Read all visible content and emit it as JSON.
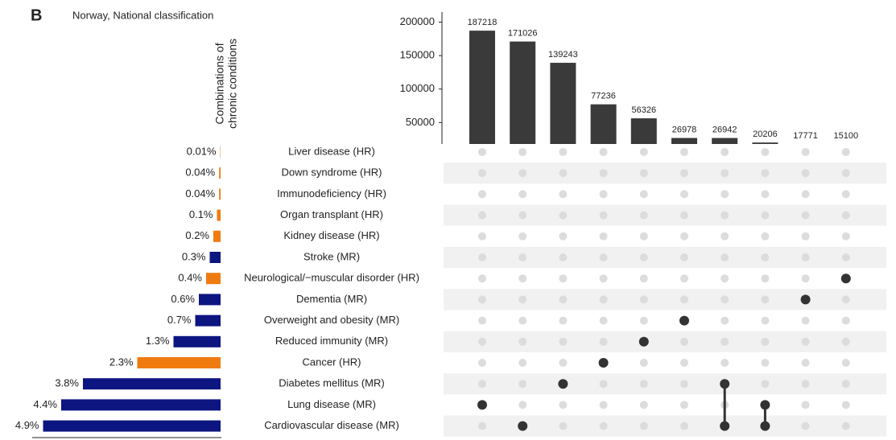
{
  "chart_data": {
    "type": "upset",
    "panel_label": "B",
    "title": "Norway, National classification",
    "ylabel": [
      "Combinations of",
      "chronic conditions"
    ],
    "values": [
      187218,
      171026,
      139243,
      77236,
      56326,
      26978,
      26942,
      20206,
      17771,
      15100
    ],
    "color": "#3a3a3a",
    "ylim": [
      18000,
      215000
    ],
    "yticks": [
      50000,
      100000,
      150000,
      200000
    ],
    "sets": [
      "Liver disease (HR)",
      "Down syndrome (HR)",
      "Immunodeficiency (HR)",
      "Organ transplant (HR)",
      "Kidney disease (HR)",
      "Stroke (MR)",
      "Neurological/−muscular disorder (HR)",
      "Dementia (MR)",
      "Overweight and obesity (MR)",
      "Reduced immunity (MR)",
      "Cancer (HR)",
      "Diabetes mellitus (MR)",
      "Lung disease (MR)",
      "Cardiovascular disease (MR)"
    ],
    "set_values": [
      0.01,
      0.04,
      0.04,
      0.1,
      0.2,
      0.3,
      0.4,
      0.6,
      0.7,
      1.3,
      2.3,
      3.8,
      4.4,
      4.9
    ],
    "set_value_labels": [
      "0.01%",
      "0.04%",
      "0.04%",
      "0.1%",
      "0.2%",
      "0.3%",
      "0.4%",
      "0.6%",
      "0.7%",
      "1.3%",
      "2.3%",
      "3.8%",
      "4.4%",
      "4.9%"
    ],
    "set_colors": [
      "#ef7b10",
      "#ef7b10",
      "#ef7b10",
      "#ef7b10",
      "#ef7b10",
      "#0c1580",
      "#ef7b10",
      "#0c1580",
      "#0c1580",
      "#0c1580",
      "#ef7b10",
      "#0c1580",
      "#0c1580",
      "#0c1580"
    ],
    "set_xlim": [
      0,
      5.2
    ],
    "members": [
      [
        12
      ],
      [
        13
      ],
      [
        11
      ],
      [
        10
      ],
      [
        9
      ],
      [
        8
      ],
      [
        11,
        13
      ],
      [
        12,
        13
      ],
      [
        7
      ],
      [
        6
      ]
    ]
  }
}
